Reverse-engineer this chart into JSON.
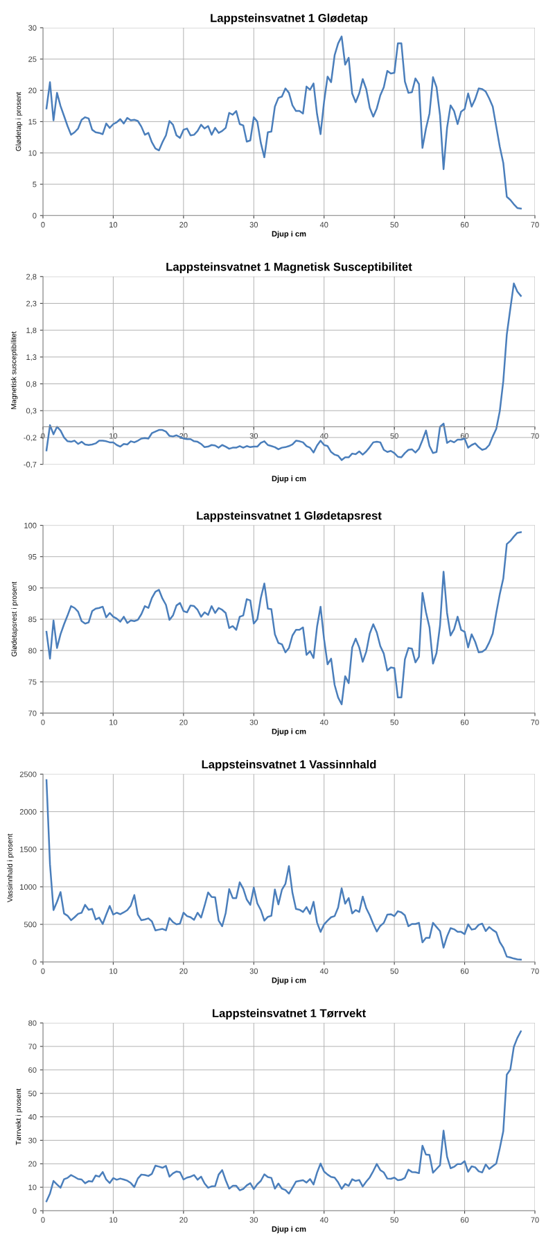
{
  "chart_data": [
    {
      "type": "line",
      "title": "Lappsteinsvatnet 1 Glødetap",
      "xlabel": "Djup i cm",
      "ylabel": "Glødetap i prosent",
      "xlim": [
        0,
        70
      ],
      "xticks": [
        0,
        10,
        20,
        30,
        40,
        50,
        60,
        70
      ],
      "ylim": [
        0,
        30
      ],
      "yticks": [
        0,
        5,
        10,
        15,
        20,
        25,
        30
      ],
      "grid": true,
      "legend": false,
      "marker": "none",
      "line_style": "solid",
      "x": [
        0.5,
        1,
        1.5,
        2,
        2.5,
        3,
        3.5,
        4,
        4.5,
        5,
        5.5,
        6,
        6.5,
        7,
        7.5,
        8,
        8.5,
        9,
        9.5,
        10,
        10.5,
        11,
        11.5,
        12,
        12.5,
        13,
        13.5,
        14,
        14.5,
        15,
        15.5,
        16,
        16.5,
        17,
        17.5,
        18,
        18.5,
        19,
        19.5,
        20,
        20.5,
        21,
        21.5,
        22,
        22.5,
        23,
        23.5,
        24,
        24.5,
        25,
        25.5,
        26,
        26.5,
        27,
        27.5,
        28,
        28.5,
        29,
        29.5,
        30,
        30.5,
        31,
        31.5,
        32,
        32.5,
        33,
        33.5,
        34,
        34.5,
        35,
        35.5,
        36,
        36.5,
        37,
        37.5,
        38,
        38.5,
        39,
        39.5,
        40,
        40.5,
        41,
        41.5,
        42,
        42.5,
        43,
        43.5,
        44,
        44.5,
        45,
        45.5,
        46,
        46.5,
        47,
        47.5,
        48,
        48.5,
        49,
        49.5,
        50,
        50.5,
        51,
        51.5,
        52,
        52.5,
        53,
        53.5,
        54,
        54.5,
        55,
        55.5,
        56,
        56.5,
        57,
        57.5,
        58,
        58.5,
        59,
        59.5,
        60,
        60.5,
        61,
        61.5,
        62,
        62.5,
        63,
        63.5,
        64,
        64.5,
        65,
        65.5,
        66,
        66.5,
        67,
        67.5,
        68
      ],
      "series": [
        {
          "color": "#4a7ebb",
          "values": [
            17.1,
            21.3,
            15.2,
            19.6,
            17.5,
            15.9,
            14.3,
            12.9,
            13.3,
            13.9,
            15.3,
            15.7,
            15.5,
            13.7,
            13.3,
            13.2,
            13.0,
            14.7,
            14.0,
            14.6,
            14.9,
            15.4,
            14.7,
            15.6,
            15.2,
            15.3,
            15.1,
            14.2,
            12.9,
            13.2,
            11.7,
            10.7,
            10.4,
            11.7,
            12.8,
            15.1,
            14.5,
            12.8,
            12.4,
            13.7,
            13.9,
            12.8,
            12.9,
            13.5,
            14.5,
            13.9,
            14.3,
            12.9,
            14.0,
            13.2,
            13.5,
            14.0,
            16.4,
            16.1,
            16.7,
            14.6,
            14.4,
            11.8,
            12.0,
            15.7,
            15.0,
            11.6,
            9.3,
            13.3,
            13.4,
            17.4,
            18.8,
            19.0,
            20.3,
            19.6,
            17.6,
            16.7,
            16.7,
            16.3,
            20.6,
            20.1,
            21.1,
            16.2,
            13.0,
            18.2,
            22.2,
            21.3,
            25.6,
            27.5,
            28.6,
            24.1,
            25.2,
            19.5,
            18.1,
            19.5,
            21.8,
            20.2,
            17.2,
            15.8,
            17.1,
            19.2,
            20.5,
            23.1,
            22.7,
            22.8,
            27.5,
            27.5,
            21.4,
            19.6,
            19.7,
            21.9,
            21.0,
            10.8,
            13.9,
            16.3,
            22.1,
            20.5,
            16.0,
            7.4,
            14.0,
            17.6,
            16.7,
            14.6,
            16.6,
            17.0,
            19.5,
            17.4,
            18.6,
            20.3,
            20.2,
            19.8,
            18.7,
            17.4,
            14.2,
            11.0,
            8.4,
            3.0,
            2.5,
            1.8,
            1.2,
            1.1
          ]
        }
      ]
    },
    {
      "type": "line",
      "title": "Lappsteinsvatnet 1 Magnetisk Susceptibilitet",
      "xlabel": "Djup i cm",
      "ylabel": "Magnetisk susceptibilitet",
      "xlim": [
        0,
        70
      ],
      "xticks": [
        0,
        10,
        20,
        30,
        40,
        50,
        60,
        70
      ],
      "ylim": [
        -0.7,
        2.8
      ],
      "yticks": [
        {
          "value": -0.7,
          "label": "-0,7"
        },
        {
          "value": -0.2,
          "label": "-0,2"
        },
        {
          "value": 0.3,
          "label": "0,3"
        },
        {
          "value": 0.8,
          "label": "0,8"
        },
        {
          "value": 1.3,
          "label": "1,3"
        },
        {
          "value": 1.8,
          "label": "1,8"
        },
        {
          "value": 2.3,
          "label": "2,3"
        },
        {
          "value": 2.8,
          "label": "2,8"
        }
      ],
      "grid": true,
      "legend": false,
      "marker": "none",
      "line_style": "solid",
      "x": [
        0.5,
        1,
        1.5,
        2,
        2.5,
        3,
        3.5,
        4,
        4.5,
        5,
        5.5,
        6,
        6.5,
        7,
        7.5,
        8,
        8.5,
        9,
        9.5,
        10,
        10.5,
        11,
        11.5,
        12,
        12.5,
        13,
        13.5,
        14,
        14.5,
        15,
        15.5,
        16,
        16.5,
        17,
        17.5,
        18,
        18.5,
        19,
        19.5,
        20,
        20.5,
        21,
        21.5,
        22,
        22.5,
        23,
        23.5,
        24,
        24.5,
        25,
        25.5,
        26,
        26.5,
        27,
        27.5,
        28,
        28.5,
        29,
        29.5,
        30,
        30.5,
        31,
        31.5,
        32,
        32.5,
        33,
        33.5,
        34,
        34.5,
        35,
        35.5,
        36,
        36.5,
        37,
        37.5,
        38,
        38.5,
        39,
        39.5,
        40,
        40.5,
        41,
        41.5,
        42,
        42.5,
        43,
        43.5,
        44,
        44.5,
        45,
        45.5,
        46,
        46.5,
        47,
        47.5,
        48,
        48.5,
        49,
        49.5,
        50,
        50.5,
        51,
        51.5,
        52,
        52.5,
        53,
        53.5,
        54,
        54.5,
        55,
        55.5,
        56,
        56.5,
        57,
        57.5,
        58,
        58.5,
        59,
        59.5,
        60,
        60.5,
        61,
        61.5,
        62,
        62.5,
        63,
        63.5,
        64,
        64.5,
        65,
        65.5,
        66,
        66.5,
        67,
        67.5,
        68
      ],
      "series": [
        {
          "color": "#4a7ebb",
          "values": [
            -0.44,
            0.03,
            -0.14,
            0.0,
            -0.07,
            -0.2,
            -0.27,
            -0.28,
            -0.26,
            -0.32,
            -0.28,
            -0.33,
            -0.34,
            -0.33,
            -0.31,
            -0.26,
            -0.26,
            -0.27,
            -0.29,
            -0.29,
            -0.34,
            -0.37,
            -0.32,
            -0.33,
            -0.27,
            -0.29,
            -0.26,
            -0.22,
            -0.21,
            -0.22,
            -0.12,
            -0.09,
            -0.06,
            -0.06,
            -0.09,
            -0.17,
            -0.18,
            -0.16,
            -0.19,
            -0.22,
            -0.23,
            -0.23,
            -0.27,
            -0.28,
            -0.32,
            -0.38,
            -0.37,
            -0.34,
            -0.35,
            -0.39,
            -0.34,
            -0.37,
            -0.41,
            -0.39,
            -0.39,
            -0.36,
            -0.39,
            -0.36,
            -0.38,
            -0.37,
            -0.37,
            -0.3,
            -0.27,
            -0.34,
            -0.36,
            -0.38,
            -0.42,
            -0.39,
            -0.38,
            -0.36,
            -0.33,
            -0.26,
            -0.27,
            -0.29,
            -0.36,
            -0.39,
            -0.48,
            -0.35,
            -0.26,
            -0.34,
            -0.36,
            -0.47,
            -0.52,
            -0.54,
            -0.62,
            -0.57,
            -0.57,
            -0.5,
            -0.51,
            -0.46,
            -0.52,
            -0.46,
            -0.38,
            -0.29,
            -0.28,
            -0.29,
            -0.43,
            -0.47,
            -0.45,
            -0.49,
            -0.56,
            -0.57,
            -0.49,
            -0.43,
            -0.42,
            -0.48,
            -0.41,
            -0.25,
            -0.07,
            -0.36,
            -0.49,
            -0.47,
            0.0,
            0.06,
            -0.3,
            -0.26,
            -0.29,
            -0.24,
            -0.24,
            -0.22,
            -0.39,
            -0.34,
            -0.31,
            -0.38,
            -0.43,
            -0.41,
            -0.34,
            -0.18,
            -0.04,
            0.29,
            0.85,
            1.72,
            2.2,
            2.67,
            2.52,
            2.44
          ]
        }
      ]
    },
    {
      "type": "line",
      "title": "Lappsteinsvatnet 1 Glødetapsrest",
      "xlabel": "Djup i cm",
      "ylabel": "Glødetapsrest i prosent",
      "xlim": [
        0,
        70
      ],
      "xticks": [
        0,
        10,
        20,
        30,
        40,
        50,
        60,
        70
      ],
      "ylim": [
        70,
        100
      ],
      "yticks": [
        70,
        75,
        80,
        85,
        90,
        95,
        100
      ],
      "grid": true,
      "legend": false,
      "marker": "none",
      "line_style": "solid",
      "x": [
        0.5,
        1,
        1.5,
        2,
        2.5,
        3,
        3.5,
        4,
        4.5,
        5,
        5.5,
        6,
        6.5,
        7,
        7.5,
        8,
        8.5,
        9,
        9.5,
        10,
        10.5,
        11,
        11.5,
        12,
        12.5,
        13,
        13.5,
        14,
        14.5,
        15,
        15.5,
        16,
        16.5,
        17,
        17.5,
        18,
        18.5,
        19,
        19.5,
        20,
        20.5,
        21,
        21.5,
        22,
        22.5,
        23,
        23.5,
        24,
        24.5,
        25,
        25.5,
        26,
        26.5,
        27,
        27.5,
        28,
        28.5,
        29,
        29.5,
        30,
        30.5,
        31,
        31.5,
        32,
        32.5,
        33,
        33.5,
        34,
        34.5,
        35,
        35.5,
        36,
        36.5,
        37,
        37.5,
        38,
        38.5,
        39,
        39.5,
        40,
        40.5,
        41,
        41.5,
        42,
        42.5,
        43,
        43.5,
        44,
        44.5,
        45,
        45.5,
        46,
        46.5,
        47,
        47.5,
        48,
        48.5,
        49,
        49.5,
        50,
        50.5,
        51,
        51.5,
        52,
        52.5,
        53,
        53.5,
        54,
        54.5,
        55,
        55.5,
        56,
        56.5,
        57,
        57.5,
        58,
        58.5,
        59,
        59.5,
        60,
        60.5,
        61,
        61.5,
        62,
        62.5,
        63,
        63.5,
        64,
        64.5,
        65,
        65.5,
        66,
        66.5,
        67,
        67.5,
        68
      ],
      "series": [
        {
          "color": "#4a7ebb",
          "values": [
            83.0,
            78.7,
            84.8,
            80.4,
            82.6,
            84.2,
            85.6,
            87.1,
            86.8,
            86.2,
            84.7,
            84.3,
            84.5,
            86.3,
            86.7,
            86.8,
            87.0,
            85.3,
            86.0,
            85.4,
            85.1,
            84.6,
            85.4,
            84.4,
            84.8,
            84.7,
            84.9,
            85.8,
            87.1,
            86.8,
            88.4,
            89.4,
            89.7,
            88.3,
            87.3,
            84.9,
            85.6,
            87.2,
            87.6,
            86.3,
            86.1,
            87.2,
            87.1,
            86.5,
            85.4,
            86.1,
            85.7,
            87.1,
            86.0,
            86.8,
            86.5,
            86.0,
            83.6,
            83.9,
            83.3,
            85.4,
            85.6,
            88.2,
            88.0,
            84.3,
            85.0,
            88.4,
            90.7,
            86.7,
            86.6,
            82.6,
            81.2,
            81.0,
            79.7,
            80.4,
            82.4,
            83.3,
            83.3,
            83.7,
            79.3,
            79.9,
            78.8,
            83.8,
            87.0,
            81.8,
            77.8,
            78.7,
            74.5,
            72.5,
            71.4,
            75.9,
            74.8,
            80.5,
            81.9,
            80.5,
            78.2,
            79.8,
            82.7,
            84.2,
            82.9,
            80.7,
            79.5,
            76.8,
            77.3,
            77.2,
            72.5,
            72.5,
            78.6,
            80.4,
            80.3,
            78.1,
            79.0,
            89.2,
            86.1,
            83.7,
            77.9,
            79.6,
            84.0,
            92.6,
            86.0,
            82.4,
            83.4,
            85.4,
            83.3,
            83.0,
            80.5,
            82.6,
            81.4,
            79.7,
            79.8,
            80.2,
            81.3,
            82.7,
            86.0,
            89.0,
            91.5,
            97.0,
            97.5,
            98.2,
            98.8,
            98.9
          ]
        }
      ]
    },
    {
      "type": "line",
      "title": "Lappsteinsvatnet 1 Vassinnhald",
      "xlabel": "Djup i cm",
      "ylabel": "Vassinnhald i prosent",
      "xlim": [
        0,
        70
      ],
      "xticks": [
        0,
        10,
        20,
        30,
        40,
        50,
        60,
        70
      ],
      "ylim": [
        0,
        2500
      ],
      "yticks": [
        0,
        500,
        1000,
        1500,
        2000,
        2500
      ],
      "grid": true,
      "legend": false,
      "marker": "none",
      "line_style": "solid",
      "x": [
        0.5,
        1,
        1.5,
        2,
        2.5,
        3,
        3.5,
        4,
        4.5,
        5,
        5.5,
        6,
        6.5,
        7,
        7.5,
        8,
        8.5,
        9,
        9.5,
        10,
        10.5,
        11,
        11.5,
        12,
        12.5,
        13,
        13.5,
        14,
        14.5,
        15,
        15.5,
        16,
        16.5,
        17,
        17.5,
        18,
        18.5,
        19,
        19.5,
        20,
        20.5,
        21,
        21.5,
        22,
        22.5,
        23,
        23.5,
        24,
        24.5,
        25,
        25.5,
        26,
        26.5,
        27,
        27.5,
        28,
        28.5,
        29,
        29.5,
        30,
        30.5,
        31,
        31.5,
        32,
        32.5,
        33,
        33.5,
        34,
        34.5,
        35,
        35.5,
        36,
        36.5,
        37,
        37.5,
        38,
        38.5,
        39,
        39.5,
        40,
        40.5,
        41,
        41.5,
        42,
        42.5,
        43,
        43.5,
        44,
        44.5,
        45,
        45.5,
        46,
        46.5,
        47,
        47.5,
        48,
        48.5,
        49,
        49.5,
        50,
        50.5,
        51,
        51.5,
        52,
        52.5,
        53,
        53.5,
        54,
        54.5,
        55,
        55.5,
        56,
        56.5,
        57,
        57.5,
        58,
        58.5,
        59,
        59.5,
        60,
        60.5,
        61,
        61.5,
        62,
        62.5,
        63,
        63.5,
        64,
        64.5,
        65,
        65.5,
        66,
        66.5,
        67,
        67.5,
        68
      ],
      "series": [
        {
          "color": "#4a7ebb",
          "values": [
            2420,
            1300,
            690,
            800,
            930,
            645,
            615,
            555,
            595,
            640,
            655,
            760,
            695,
            705,
            565,
            590,
            505,
            630,
            745,
            630,
            655,
            635,
            660,
            690,
            750,
            890,
            630,
            555,
            565,
            580,
            540,
            420,
            430,
            440,
            420,
            585,
            530,
            500,
            510,
            655,
            610,
            595,
            560,
            655,
            590,
            750,
            925,
            865,
            860,
            550,
            475,
            650,
            970,
            850,
            850,
            1060,
            975,
            830,
            760,
            990,
            780,
            690,
            550,
            600,
            615,
            965,
            765,
            960,
            1040,
            1275,
            920,
            705,
            695,
            665,
            730,
            640,
            800,
            525,
            400,
            500,
            550,
            595,
            610,
            725,
            980,
            775,
            850,
            645,
            690,
            665,
            870,
            715,
            620,
            505,
            405,
            480,
            520,
            630,
            635,
            610,
            675,
            660,
            620,
            475,
            505,
            505,
            520,
            260,
            320,
            320,
            520,
            465,
            410,
            190,
            340,
            450,
            435,
            400,
            400,
            370,
            500,
            430,
            440,
            495,
            510,
            410,
            465,
            425,
            395,
            265,
            190,
            70,
            60,
            45,
            35,
            30
          ]
        }
      ]
    },
    {
      "type": "line",
      "title": "Lappsteinsvatnet 1 Tørrvekt",
      "xlabel": "Djup i cm",
      "ylabel": "Tørrvekt i prosent",
      "xlim": [
        0,
        70
      ],
      "xticks": [
        0,
        10,
        20,
        30,
        40,
        50,
        60,
        70
      ],
      "ylim": [
        0,
        80
      ],
      "yticks": [
        0,
        10,
        20,
        30,
        40,
        50,
        60,
        70,
        80
      ],
      "grid": true,
      "legend": false,
      "marker": "none",
      "line_style": "solid",
      "x": [
        0.5,
        1,
        1.5,
        2,
        2.5,
        3,
        3.5,
        4,
        4.5,
        5,
        5.5,
        6,
        6.5,
        7,
        7.5,
        8,
        8.5,
        9,
        9.5,
        10,
        10.5,
        11,
        11.5,
        12,
        12.5,
        13,
        13.5,
        14,
        14.5,
        15,
        15.5,
        16,
        16.5,
        17,
        17.5,
        18,
        18.5,
        19,
        19.5,
        20,
        20.5,
        21,
        21.5,
        22,
        22.5,
        23,
        23.5,
        24,
        24.5,
        25,
        25.5,
        26,
        26.5,
        27,
        27.5,
        28,
        28.5,
        29,
        29.5,
        30,
        30.5,
        31,
        31.5,
        32,
        32.5,
        33,
        33.5,
        34,
        34.5,
        35,
        35.5,
        36,
        36.5,
        37,
        37.5,
        38,
        38.5,
        39,
        39.5,
        40,
        40.5,
        41,
        41.5,
        42,
        42.5,
        43,
        43.5,
        44,
        44.5,
        45,
        45.5,
        46,
        46.5,
        47,
        47.5,
        48,
        48.5,
        49,
        49.5,
        50,
        50.5,
        51,
        51.5,
        52,
        52.5,
        53,
        53.5,
        54,
        54.5,
        55,
        55.5,
        56,
        56.5,
        57,
        57.5,
        58,
        58.5,
        59,
        59.5,
        60,
        60.5,
        61,
        61.5,
        62,
        62.5,
        63,
        63.5,
        64,
        64.5,
        65,
        65.5,
        66,
        66.5,
        67,
        67.5,
        68
      ],
      "series": [
        {
          "color": "#4a7ebb",
          "values": [
            4.0,
            7.3,
            12.7,
            11.2,
            9.8,
            13.4,
            14.0,
            15.2,
            14.4,
            13.5,
            13.3,
            11.7,
            12.6,
            12.4,
            15.0,
            14.5,
            16.5,
            13.3,
            11.8,
            13.9,
            13.2,
            13.7,
            13.3,
            12.8,
            11.8,
            10.1,
            13.7,
            15.4,
            15.2,
            14.8,
            15.7,
            19.2,
            18.8,
            18.3,
            19.1,
            14.5,
            15.9,
            16.7,
            16.4,
            13.3,
            14.1,
            14.5,
            15.2,
            13.2,
            14.5,
            11.6,
            9.8,
            10.4,
            10.5,
            15.4,
            17.3,
            13.0,
            9.4,
            10.6,
            10.6,
            8.7,
            9.3,
            10.8,
            11.7,
            9.2,
            11.3,
            12.7,
            15.5,
            14.3,
            14.0,
            9.4,
            11.6,
            9.4,
            8.8,
            7.3,
            9.8,
            12.4,
            12.7,
            13.0,
            12.0,
            13.5,
            11.2,
            16.2,
            20.1,
            16.7,
            15.4,
            14.4,
            14.1,
            12.1,
            9.3,
            11.4,
            10.6,
            13.4,
            12.7,
            13.1,
            10.3,
            12.4,
            14.2,
            16.9,
            19.9,
            17.3,
            16.3,
            13.7,
            13.6,
            14.1,
            13.0,
            13.2,
            14.0,
            17.5,
            16.5,
            16.4,
            16.0,
            27.7,
            23.9,
            23.8,
            16.2,
            17.8,
            19.4,
            34.1,
            23.0,
            18.1,
            18.7,
            19.9,
            19.9,
            21.1,
            16.6,
            18.9,
            18.5,
            16.8,
            16.3,
            19.7,
            17.8,
            19.0,
            20.1,
            26.6,
            33.9,
            58.0,
            60.1,
            69.8,
            73.6,
            76.4
          ]
        }
      ]
    }
  ]
}
